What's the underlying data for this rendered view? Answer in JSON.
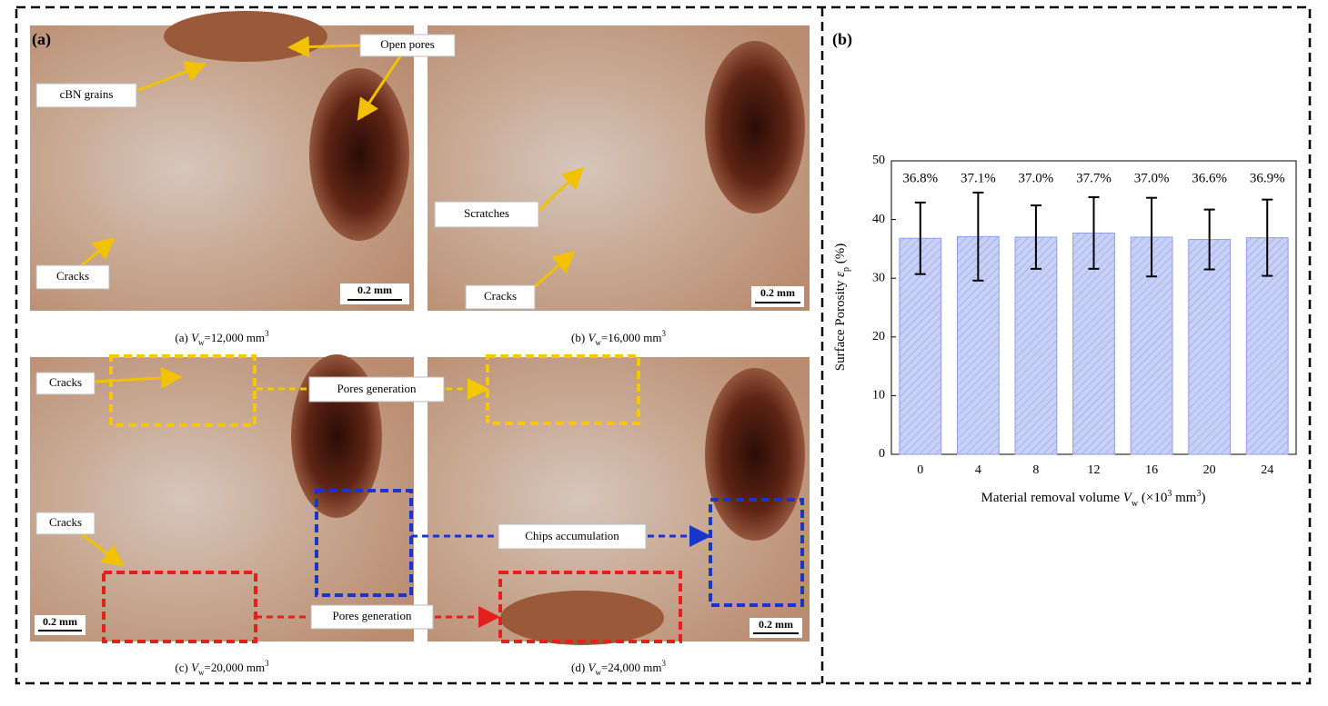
{
  "panel_a": {
    "label": "(a)",
    "captions": [
      {
        "prefix": "(a) ",
        "symbol": "V",
        "subscript": "w",
        "text": "=12,000 mm",
        "superscript": "3"
      },
      {
        "prefix": "(b) ",
        "symbol": "V",
        "subscript": "w",
        "text": "=16,000 mm",
        "superscript": "3"
      },
      {
        "prefix": "(c) ",
        "symbol": "V",
        "subscript": "w",
        "text": "=20,000 mm",
        "superscript": "3"
      },
      {
        "prefix": "(d) ",
        "symbol": "V",
        "subscript": "w",
        "text": "=24,000 mm",
        "superscript": "3"
      }
    ],
    "annotations": {
      "open_pores": "Open pores",
      "cbn_grains": "cBN grains",
      "cracks_a": "Cracks",
      "scratches": "Scratches",
      "cracks_b": "Cracks",
      "cracks_c1": "Cracks",
      "cracks_c2": "Cracks",
      "pores_generation_top": "Pores generation",
      "chips_accumulation": "Chips accumulation",
      "pores_generation_bottom": "Pores generation"
    },
    "scale_bars": [
      "0.2 mm",
      "0.2 mm",
      "0.2 mm",
      "0.2 mm"
    ]
  },
  "chart_data": {
    "type": "bar",
    "label": "(b)",
    "categories": [
      "0",
      "4",
      "8",
      "12",
      "16",
      "20",
      "24"
    ],
    "values": [
      36.8,
      37.1,
      37.0,
      37.7,
      37.0,
      36.6,
      36.9
    ],
    "value_labels": [
      "36.8%",
      "37.1%",
      "37.0%",
      "37.7%",
      "37.0%",
      "36.6%",
      "36.9%"
    ],
    "errors": [
      6.1,
      7.5,
      5.4,
      6.1,
      6.7,
      5.1,
      6.5
    ],
    "color": "#c9d0f5",
    "ylim": [
      0,
      50
    ],
    "yticks": [
      0,
      10,
      20,
      30,
      40,
      50
    ],
    "y_label": {
      "text": "Surface Porosity ",
      "symbol": "ε",
      "subscript": "p",
      "unit": " (%)"
    },
    "x_label": {
      "text": "Material removal volume ",
      "symbol": "V",
      "subscript": "w",
      "unit": " (×10",
      "superscript": "3",
      "unit_end": " mm",
      "superscript2": "3",
      "close": ")"
    }
  }
}
